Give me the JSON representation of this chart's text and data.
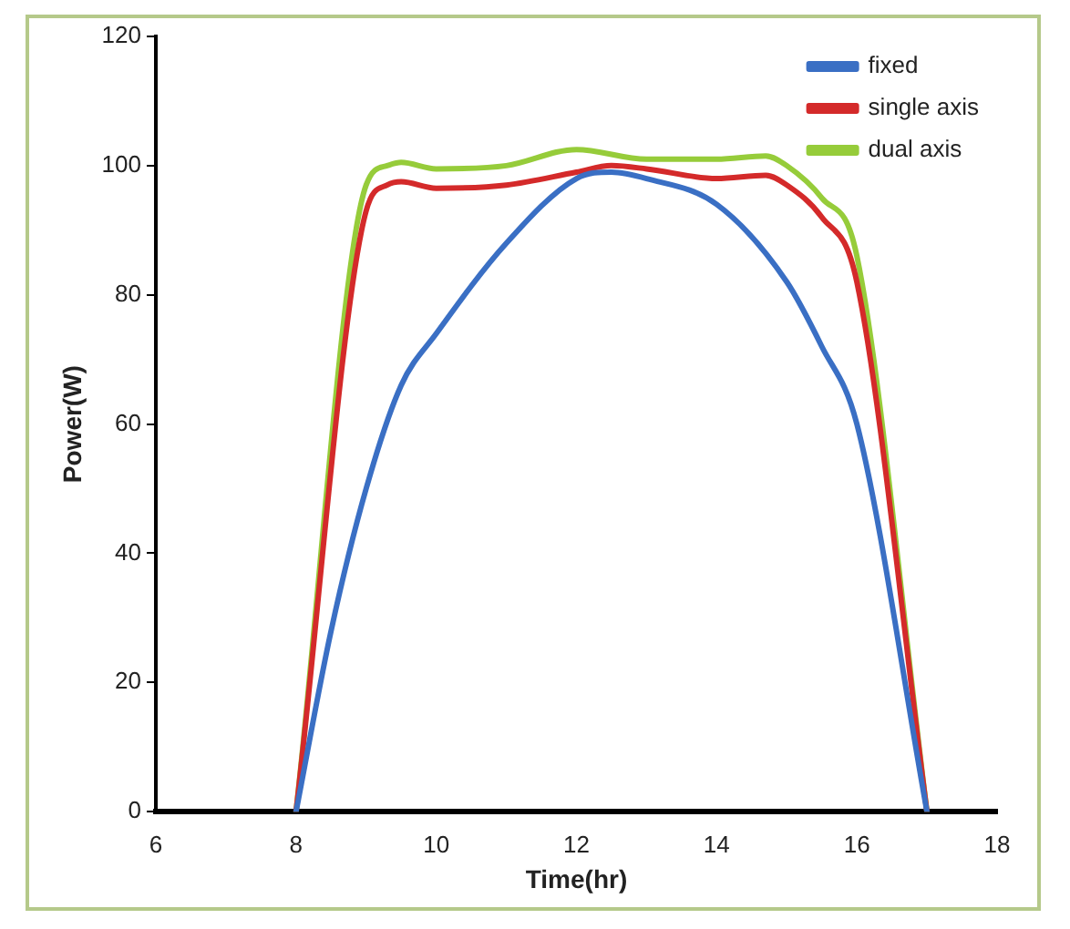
{
  "chart_data": {
    "type": "line",
    "xlabel": "Time(hr)",
    "ylabel": "Power(W)",
    "xlim": [
      6,
      18
    ],
    "xticks": [
      6,
      8,
      10,
      12,
      14,
      16,
      18
    ],
    "ylim": [
      0,
      120
    ],
    "yticks": [
      0,
      20,
      40,
      60,
      80,
      100,
      120
    ],
    "grid": false,
    "legend": "top right",
    "marker": "none",
    "line_style": "solid",
    "series": [
      {
        "name": "fixed",
        "color": "#3a6fc4",
        "x": [
          8,
          8.5,
          9,
          9.5,
          10,
          11,
          12,
          12.5,
          13,
          14,
          15,
          15.5,
          16,
          17
        ],
        "values": [
          0,
          28,
          50,
          66,
          74,
          88,
          98,
          99,
          98,
          94,
          82,
          72,
          60,
          0
        ]
      },
      {
        "name": "single axis",
        "color": "#d42a2a",
        "x": [
          8,
          9,
          9.3,
          9.5,
          10,
          11,
          12,
          12.5,
          13,
          14,
          14.7,
          15,
          15.5,
          16,
          17
        ],
        "values": [
          0,
          93,
          97,
          97.5,
          96.5,
          97,
          99,
          100,
          99.5,
          98,
          98.5,
          97,
          92,
          82,
          0
        ]
      },
      {
        "name": "dual axis",
        "color": "#96cc3a",
        "x": [
          8,
          9,
          9.3,
          9.5,
          10,
          11,
          12,
          13,
          14,
          14.7,
          15,
          15.5,
          16,
          17
        ],
        "values": [
          0,
          97,
          100,
          100.5,
          99.5,
          100,
          102.5,
          101,
          101,
          101.5,
          100,
          95,
          86,
          0
        ]
      }
    ]
  }
}
